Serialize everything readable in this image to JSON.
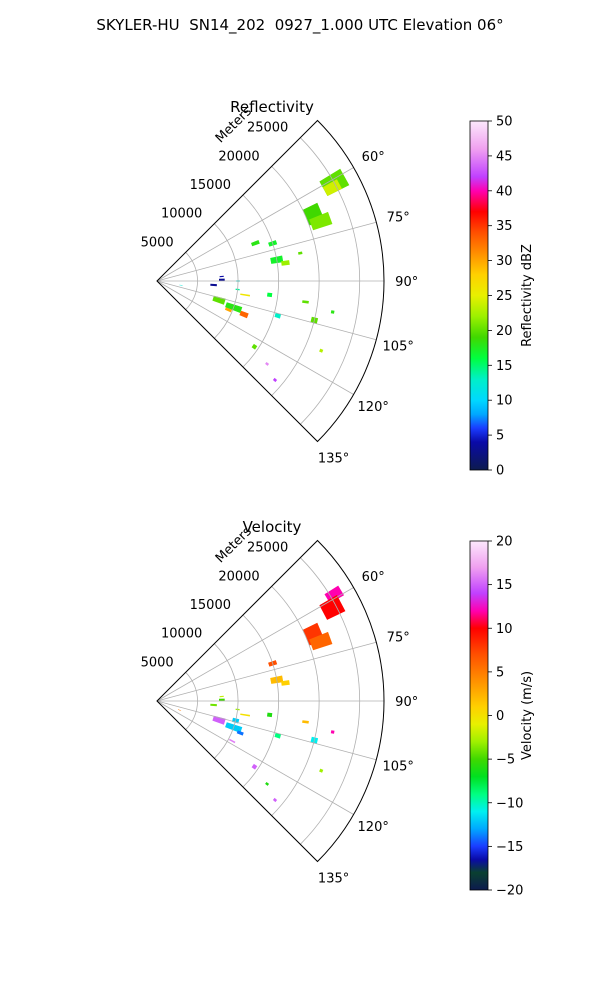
{
  "figure": {
    "title": "SKYLER-HU  SN14_202  0927_1.000 UTC Elevation 06°"
  },
  "chart_data": [
    {
      "type": "polar-sector",
      "title": "Reflectivity",
      "radial_label": "Meters",
      "radial_ticks": [
        5000,
        10000,
        15000,
        20000,
        25000
      ],
      "radial_tick_labels": [
        "5000",
        "10000",
        "15000",
        "20000",
        "25000"
      ],
      "rmax": 28000,
      "theta_range_deg": [
        45,
        135
      ],
      "theta_ticks_deg": [
        60,
        75,
        90,
        105,
        120,
        135
      ],
      "theta_tick_labels": [
        "60°",
        "75°",
        "90°",
        "105°",
        "120°",
        "135°"
      ],
      "grid": true,
      "colorbar": {
        "label": "Reflectivity dBZ",
        "min": 0,
        "max": 50,
        "ticks": [
          0,
          5,
          10,
          15,
          20,
          25,
          30,
          35,
          40,
          45,
          50
        ],
        "tick_labels": [
          "0",
          "5",
          "10",
          "15",
          "20",
          "25",
          "30",
          "35",
          "40",
          "45",
          "50"
        ],
        "stops": [
          {
            "v": 0,
            "c": "#0d1b4f"
          },
          {
            "v": 4,
            "c": "#0a0aa8"
          },
          {
            "v": 6,
            "c": "#1a3cff"
          },
          {
            "v": 8,
            "c": "#00a8ff"
          },
          {
            "v": 10,
            "c": "#00d8ff"
          },
          {
            "v": 13,
            "c": "#00f0c8"
          },
          {
            "v": 16,
            "c": "#00ff40"
          },
          {
            "v": 19,
            "c": "#40d800"
          },
          {
            "v": 22,
            "c": "#9cf000"
          },
          {
            "v": 25,
            "c": "#e8f000"
          },
          {
            "v": 28,
            "c": "#ffd000"
          },
          {
            "v": 31,
            "c": "#ff9000"
          },
          {
            "v": 34,
            "c": "#ff5000"
          },
          {
            "v": 37,
            "c": "#ff0000"
          },
          {
            "v": 40,
            "c": "#ff00b0"
          },
          {
            "v": 42,
            "c": "#c040ff"
          },
          {
            "v": 46,
            "c": "#f0a0f0"
          },
          {
            "v": 50,
            "c": "#fce8fc"
          }
        ]
      },
      "cells": [
        {
          "az": 61,
          "r": 25000,
          "dr": 3000,
          "dth": 5,
          "v": 20
        },
        {
          "az": 62,
          "r": 24500,
          "dr": 2000,
          "dth": 3,
          "v": 24
        },
        {
          "az": 67,
          "r": 21000,
          "dr": 2000,
          "dth": 6,
          "v": 19
        },
        {
          "az": 70,
          "r": 21500,
          "dr": 2500,
          "dth": 4,
          "v": 21
        },
        {
          "az": 72,
          "r": 15000,
          "dr": 1000,
          "dth": 2,
          "v": 17
        },
        {
          "az": 69,
          "r": 13000,
          "dr": 1000,
          "dth": 2,
          "v": 18
        },
        {
          "az": 80,
          "r": 15000,
          "dr": 1500,
          "dth": 3,
          "v": 17
        },
        {
          "az": 82,
          "r": 16000,
          "dr": 1000,
          "dth": 2,
          "v": 22
        },
        {
          "az": 79,
          "r": 18000,
          "dr": 500,
          "dth": 1,
          "v": 20
        },
        {
          "az": 86,
          "r": 8000,
          "dr": 500,
          "dth": 1,
          "v": 4
        },
        {
          "az": 89,
          "r": 8000,
          "dr": 700,
          "dth": 2,
          "v": 3
        },
        {
          "az": 90,
          "r": 10000,
          "dr": 400,
          "dth": 1,
          "v": 12
        },
        {
          "az": 94,
          "r": 7000,
          "dr": 800,
          "dth": 2,
          "v": 3
        },
        {
          "az": 96,
          "r": 10000,
          "dr": 500,
          "dth": 1,
          "v": 14
        },
        {
          "az": 99,
          "r": 11000,
          "dr": 1200,
          "dth": 1,
          "v": 26
        },
        {
          "az": 97,
          "r": 14000,
          "dr": 600,
          "dth": 2,
          "v": 16
        },
        {
          "az": 98,
          "r": 18500,
          "dr": 800,
          "dth": 1,
          "v": 20
        },
        {
          "az": 107,
          "r": 8000,
          "dr": 1500,
          "dth": 5,
          "v": 20
        },
        {
          "az": 109,
          "r": 10000,
          "dr": 2000,
          "dth": 4,
          "v": 18
        },
        {
          "az": 111,
          "r": 11500,
          "dr": 1000,
          "dth": 3,
          "v": 33
        },
        {
          "az": 112,
          "r": 9500,
          "dr": 800,
          "dth": 2,
          "v": 30
        },
        {
          "az": 106,
          "r": 15500,
          "dr": 700,
          "dth": 2,
          "v": 13
        },
        {
          "az": 104,
          "r": 20000,
          "dr": 800,
          "dth": 2,
          "v": 20
        },
        {
          "az": 100,
          "r": 22000,
          "dr": 400,
          "dth": 1,
          "v": 18
        },
        {
          "az": 113,
          "r": 22000,
          "dr": 400,
          "dth": 1,
          "v": 23
        },
        {
          "az": 124,
          "r": 14500,
          "dr": 500,
          "dth": 2,
          "v": 20
        },
        {
          "az": 127,
          "r": 17000,
          "dr": 400,
          "dth": 1,
          "v": 45
        },
        {
          "az": 130,
          "r": 19000,
          "dr": 400,
          "dth": 1,
          "v": 42
        },
        {
          "az": 100,
          "r": 3000,
          "dr": 400,
          "dth": 1,
          "v": 12
        }
      ]
    },
    {
      "type": "polar-sector",
      "title": "Velocity",
      "radial_label": "Meters",
      "radial_ticks": [
        5000,
        10000,
        15000,
        20000,
        25000
      ],
      "radial_tick_labels": [
        "5000",
        "10000",
        "15000",
        "20000",
        "25000"
      ],
      "rmax": 28000,
      "theta_range_deg": [
        45,
        135
      ],
      "theta_ticks_deg": [
        60,
        75,
        90,
        105,
        120,
        135
      ],
      "theta_tick_labels": [
        "60°",
        "75°",
        "90°",
        "105°",
        "120°",
        "135°"
      ],
      "grid": true,
      "colorbar": {
        "label": "Velocity (m/s)",
        "min": -20,
        "max": 20,
        "ticks": [
          -20,
          -15,
          -10,
          -5,
          0,
          5,
          10,
          15,
          20
        ],
        "tick_labels": [
          "−20",
          "−15",
          "−10",
          "−5",
          "0",
          "5",
          "10",
          "15",
          "20"
        ],
        "stops": [
          {
            "v": -20,
            "c": "#0d1b4f"
          },
          {
            "v": -18,
            "c": "#0a4030"
          },
          {
            "v": -16.5,
            "c": "#0a0aa8"
          },
          {
            "v": -15,
            "c": "#1a3cff"
          },
          {
            "v": -13,
            "c": "#00a8ff"
          },
          {
            "v": -11,
            "c": "#00f0f0"
          },
          {
            "v": -9,
            "c": "#00ff80"
          },
          {
            "v": -7,
            "c": "#00e020"
          },
          {
            "v": -5,
            "c": "#40d800"
          },
          {
            "v": -3,
            "c": "#a0f000"
          },
          {
            "v": -1,
            "c": "#e8f000"
          },
          {
            "v": 1,
            "c": "#ffd000"
          },
          {
            "v": 4,
            "c": "#ff9000"
          },
          {
            "v": 7,
            "c": "#ff5000"
          },
          {
            "v": 10,
            "c": "#ff0000"
          },
          {
            "v": 12,
            "c": "#ff00b0"
          },
          {
            "v": 14,
            "c": "#c040ff"
          },
          {
            "v": 17,
            "c": "#f0a0f0"
          },
          {
            "v": 20,
            "c": "#fce8fc"
          }
        ]
      },
      "cells": [
        {
          "az": 59,
          "r": 25500,
          "dr": 2000,
          "dth": 3,
          "v": 12
        },
        {
          "az": 62,
          "r": 24500,
          "dr": 2500,
          "dth": 5,
          "v": 10
        },
        {
          "az": 67,
          "r": 21000,
          "dr": 2000,
          "dth": 6,
          "v": 8
        },
        {
          "az": 70,
          "r": 21500,
          "dr": 2500,
          "dth": 4,
          "v": 6
        },
        {
          "az": 72,
          "r": 15000,
          "dr": 1000,
          "dth": 2,
          "v": 7
        },
        {
          "az": 80,
          "r": 15000,
          "dr": 1500,
          "dth": 3,
          "v": 2
        },
        {
          "az": 82,
          "r": 16000,
          "dr": 1000,
          "dth": 2,
          "v": 1
        },
        {
          "az": 86,
          "r": 8000,
          "dr": 500,
          "dth": 1,
          "v": -2
        },
        {
          "az": 89,
          "r": 8000,
          "dr": 700,
          "dth": 2,
          "v": -5
        },
        {
          "az": 94,
          "r": 7000,
          "dr": 800,
          "dth": 2,
          "v": -4
        },
        {
          "az": 96,
          "r": 10000,
          "dr": 500,
          "dth": 1,
          "v": -3
        },
        {
          "az": 99,
          "r": 11000,
          "dr": 1200,
          "dth": 1,
          "v": 0
        },
        {
          "az": 104,
          "r": 10000,
          "dr": 800,
          "dth": 3,
          "v": -12
        },
        {
          "az": 97,
          "r": 14000,
          "dr": 600,
          "dth": 2,
          "v": -6
        },
        {
          "az": 98,
          "r": 18500,
          "dr": 800,
          "dth": 1,
          "v": 2
        },
        {
          "az": 107,
          "r": 8000,
          "dr": 1500,
          "dth": 5,
          "v": 15
        },
        {
          "az": 109,
          "r": 10000,
          "dr": 2000,
          "dth": 4,
          "v": -12
        },
        {
          "az": 111,
          "r": 11000,
          "dr": 800,
          "dth": 2,
          "v": -14
        },
        {
          "az": 106,
          "r": 15500,
          "dr": 700,
          "dth": 2,
          "v": -9
        },
        {
          "az": 104,
          "r": 20000,
          "dr": 800,
          "dth": 2,
          "v": -11
        },
        {
          "az": 100,
          "r": 22000,
          "dr": 400,
          "dth": 1,
          "v": 12
        },
        {
          "az": 113,
          "r": 22000,
          "dr": 400,
          "dth": 1,
          "v": -3
        },
        {
          "az": 118,
          "r": 10500,
          "dr": 800,
          "dth": 1,
          "v": 16
        },
        {
          "az": 124,
          "r": 14500,
          "dr": 500,
          "dth": 2,
          "v": 15
        },
        {
          "az": 127,
          "r": 17000,
          "dr": 400,
          "dth": 1,
          "v": -6
        },
        {
          "az": 130,
          "r": 19000,
          "dr": 400,
          "dth": 1,
          "v": 15
        },
        {
          "az": 112,
          "r": 3000,
          "dr": 400,
          "dth": 1,
          "v": 5
        }
      ]
    }
  ]
}
